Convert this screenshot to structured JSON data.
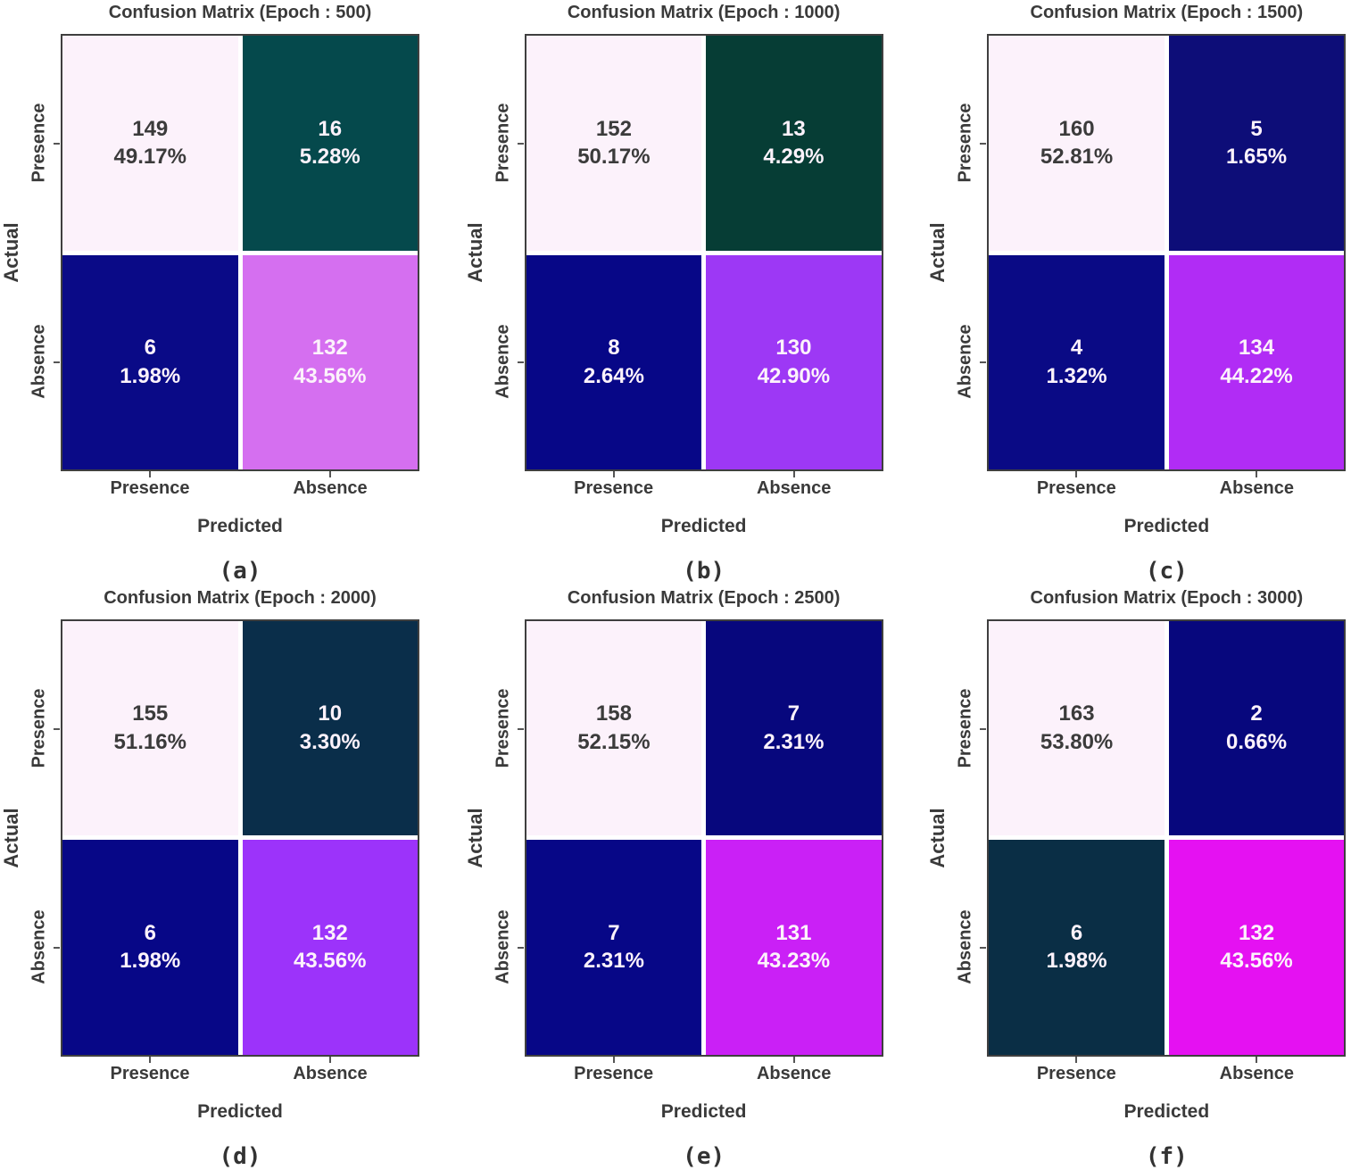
{
  "figure": {
    "xlabel": "Predicted",
    "ylabel": "Actual",
    "x_tick_labels": [
      "Presence",
      "Absence"
    ],
    "y_tick_labels": [
      "Presence",
      "Absence"
    ]
  },
  "chart_data": [
    {
      "type": "heatmap",
      "title": "Confusion Matrix (Epoch : 500)",
      "subplot_label": "(a)",
      "epoch": 500,
      "xlabel": "Predicted",
      "ylabel": "Actual",
      "x_tick_labels": [
        "Presence",
        "Absence"
      ],
      "y_tick_labels": [
        "Presence",
        "Absence"
      ],
      "cells": [
        {
          "actual": "Presence",
          "predicted": "Presence",
          "count": "149",
          "percent": "49.17%",
          "bg": "#fcf2fb",
          "fg": "#3b3b3b"
        },
        {
          "actual": "Presence",
          "predicted": "Absence",
          "count": "16",
          "percent": "5.28%",
          "bg": "#05494c",
          "fg": "#fcf2fb"
        },
        {
          "actual": "Absence",
          "predicted": "Presence",
          "count": "6",
          "percent": "1.98%",
          "bg": "#0a0a87",
          "fg": "#fcf2fb"
        },
        {
          "actual": "Absence",
          "predicted": "Absence",
          "count": "132",
          "percent": "43.56%",
          "bg": "#d56ff0",
          "fg": "#fcf2fb"
        }
      ]
    },
    {
      "type": "heatmap",
      "title": "Confusion Matrix (Epoch : 1000)",
      "subplot_label": "(b)",
      "epoch": 1000,
      "xlabel": "Predicted",
      "ylabel": "Actual",
      "x_tick_labels": [
        "Presence",
        "Absence"
      ],
      "y_tick_labels": [
        "Presence",
        "Absence"
      ],
      "cells": [
        {
          "actual": "Presence",
          "predicted": "Presence",
          "count": "152",
          "percent": "50.17%",
          "bg": "#fcf2fb",
          "fg": "#3b3b3b"
        },
        {
          "actual": "Presence",
          "predicted": "Absence",
          "count": "13",
          "percent": "4.29%",
          "bg": "#063d35",
          "fg": "#fcf2fb"
        },
        {
          "actual": "Absence",
          "predicted": "Presence",
          "count": "8",
          "percent": "2.64%",
          "bg": "#070787",
          "fg": "#fcf2fb"
        },
        {
          "actual": "Absence",
          "predicted": "Absence",
          "count": "130",
          "percent": "42.90%",
          "bg": "#9d38f5",
          "fg": "#fcf2fb"
        }
      ]
    },
    {
      "type": "heatmap",
      "title": "Confusion Matrix (Epoch : 1500)",
      "subplot_label": "(c)",
      "epoch": 1500,
      "xlabel": "Predicted",
      "ylabel": "Actual",
      "x_tick_labels": [
        "Presence",
        "Absence"
      ],
      "y_tick_labels": [
        "Presence",
        "Absence"
      ],
      "cells": [
        {
          "actual": "Presence",
          "predicted": "Presence",
          "count": "160",
          "percent": "52.81%",
          "bg": "#fcf2fb",
          "fg": "#3b3b3b"
        },
        {
          "actual": "Presence",
          "predicted": "Absence",
          "count": "5",
          "percent": "1.65%",
          "bg": "#0d0d78",
          "fg": "#fcf2fb"
        },
        {
          "actual": "Absence",
          "predicted": "Presence",
          "count": "4",
          "percent": "1.32%",
          "bg": "#0a0a85",
          "fg": "#fcf2fb"
        },
        {
          "actual": "Absence",
          "predicted": "Absence",
          "count": "134",
          "percent": "44.22%",
          "bg": "#b12cf5",
          "fg": "#fcf2fb"
        }
      ]
    },
    {
      "type": "heatmap",
      "title": "Confusion Matrix (Epoch : 2000)",
      "subplot_label": "(d)",
      "epoch": 2000,
      "xlabel": "Predicted",
      "ylabel": "Actual",
      "x_tick_labels": [
        "Presence",
        "Absence"
      ],
      "y_tick_labels": [
        "Presence",
        "Absence"
      ],
      "cells": [
        {
          "actual": "Presence",
          "predicted": "Presence",
          "count": "155",
          "percent": "51.16%",
          "bg": "#fcf2fb",
          "fg": "#3b3b3b"
        },
        {
          "actual": "Presence",
          "predicted": "Absence",
          "count": "10",
          "percent": "3.30%",
          "bg": "#0a2e4a",
          "fg": "#fcf2fb"
        },
        {
          "actual": "Absence",
          "predicted": "Presence",
          "count": "6",
          "percent": "1.98%",
          "bg": "#070787",
          "fg": "#fcf2fb"
        },
        {
          "actual": "Absence",
          "predicted": "Absence",
          "count": "132",
          "percent": "43.56%",
          "bg": "#9c33fa",
          "fg": "#fcf2fb"
        }
      ]
    },
    {
      "type": "heatmap",
      "title": "Confusion Matrix (Epoch : 2500)",
      "subplot_label": "(e)",
      "epoch": 2500,
      "xlabel": "Predicted",
      "ylabel": "Actual",
      "x_tick_labels": [
        "Presence",
        "Absence"
      ],
      "y_tick_labels": [
        "Presence",
        "Absence"
      ],
      "cells": [
        {
          "actual": "Presence",
          "predicted": "Presence",
          "count": "158",
          "percent": "52.15%",
          "bg": "#fcf2fb",
          "fg": "#3b3b3b"
        },
        {
          "actual": "Presence",
          "predicted": "Absence",
          "count": "7",
          "percent": "2.31%",
          "bg": "#07077d",
          "fg": "#fcf2fb"
        },
        {
          "actual": "Absence",
          "predicted": "Presence",
          "count": "7",
          "percent": "2.31%",
          "bg": "#070787",
          "fg": "#fcf2fb"
        },
        {
          "actual": "Absence",
          "predicted": "Absence",
          "count": "131",
          "percent": "43.23%",
          "bg": "#ca20f6",
          "fg": "#fcf2fb"
        }
      ]
    },
    {
      "type": "heatmap",
      "title": "Confusion Matrix (Epoch : 3000)",
      "subplot_label": "(f)",
      "epoch": 3000,
      "xlabel": "Predicted",
      "ylabel": "Actual",
      "x_tick_labels": [
        "Presence",
        "Absence"
      ],
      "y_tick_labels": [
        "Presence",
        "Absence"
      ],
      "cells": [
        {
          "actual": "Presence",
          "predicted": "Presence",
          "count": "163",
          "percent": "53.80%",
          "bg": "#fcf2fb",
          "fg": "#3b3b3b"
        },
        {
          "actual": "Presence",
          "predicted": "Absence",
          "count": "2",
          "percent": "0.66%",
          "bg": "#07077d",
          "fg": "#fcf2fb"
        },
        {
          "actual": "Absence",
          "predicted": "Presence",
          "count": "6",
          "percent": "1.98%",
          "bg": "#0a2e45",
          "fg": "#fcf2fb"
        },
        {
          "actual": "Absence",
          "predicted": "Absence",
          "count": "132",
          "percent": "43.56%",
          "bg": "#e511f2",
          "fg": "#fcf2fb"
        }
      ]
    }
  ]
}
